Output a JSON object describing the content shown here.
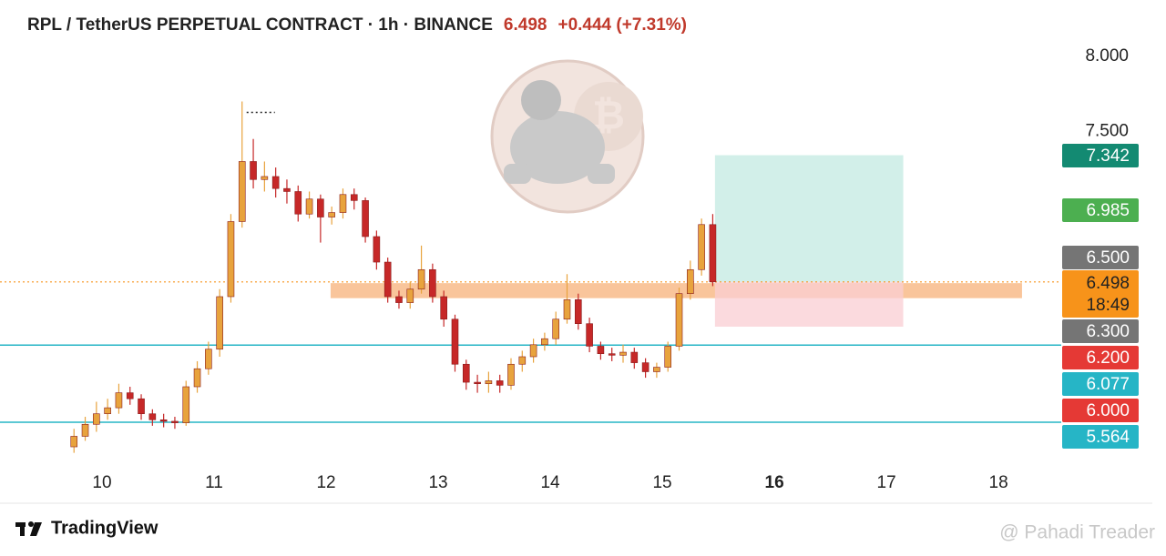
{
  "chart_data": {
    "type": "candlestick",
    "title": "RPL / TetherUS PERPETUAL CONTRACT · 1h · BINANCE",
    "price": "6.498",
    "change": "+0.444 (+7.31%)",
    "x": [
      9.75,
      9.85,
      9.95,
      10.05,
      10.15,
      10.25,
      10.35,
      10.45,
      10.55,
      10.65,
      10.75,
      10.85,
      10.95,
      11.05,
      11.15,
      11.25,
      11.35,
      11.45,
      11.55,
      11.65,
      11.75,
      11.85,
      11.95,
      12.05,
      12.15,
      12.25,
      12.35,
      12.45,
      12.55,
      12.65,
      12.75,
      12.85,
      12.95,
      13.05,
      13.15,
      13.25,
      13.35,
      13.45,
      13.55,
      13.65,
      13.75,
      13.85,
      13.95,
      14.05,
      14.15,
      14.25,
      14.35,
      14.45,
      14.55,
      14.65,
      14.75,
      14.85,
      14.95,
      15.05,
      15.15,
      15.25,
      15.35,
      15.45
    ],
    "open": [
      5.4,
      5.47,
      5.55,
      5.62,
      5.66,
      5.76,
      5.72,
      5.62,
      5.58,
      5.57,
      5.56,
      5.8,
      5.92,
      6.05,
      6.4,
      6.9,
      7.3,
      7.18,
      7.2,
      7.12,
      7.1,
      6.95,
      7.05,
      6.93,
      6.96,
      7.08,
      7.04,
      6.8,
      6.63,
      6.4,
      6.36,
      6.45,
      6.58,
      6.4,
      6.25,
      5.95,
      5.83,
      5.82,
      5.84,
      5.81,
      5.95,
      6.0,
      6.08,
      6.12,
      6.25,
      6.38,
      6.22,
      6.07,
      6.02,
      6.01,
      6.03,
      5.96,
      5.9,
      5.93,
      6.07,
      6.42,
      6.58,
      6.88
    ],
    "high": [
      5.52,
      5.6,
      5.7,
      5.72,
      5.82,
      5.8,
      5.75,
      5.65,
      5.62,
      5.6,
      5.84,
      5.97,
      6.1,
      6.45,
      6.95,
      7.7,
      7.45,
      7.3,
      7.26,
      7.18,
      7.14,
      7.1,
      7.08,
      7.0,
      7.12,
      7.12,
      7.06,
      6.84,
      6.66,
      6.44,
      6.5,
      6.74,
      6.62,
      6.44,
      6.28,
      5.98,
      5.88,
      5.9,
      5.88,
      5.99,
      6.04,
      6.12,
      6.16,
      6.3,
      6.55,
      6.42,
      6.26,
      6.1,
      6.06,
      6.08,
      6.06,
      5.99,
      5.96,
      6.1,
      6.46,
      6.64,
      6.92,
      6.95
    ],
    "low": [
      5.36,
      5.44,
      5.5,
      5.58,
      5.62,
      5.68,
      5.58,
      5.54,
      5.53,
      5.52,
      5.54,
      5.76,
      5.88,
      6.0,
      6.36,
      6.86,
      7.12,
      7.1,
      7.06,
      7.02,
      6.9,
      6.92,
      6.76,
      6.88,
      6.92,
      6.98,
      6.76,
      6.58,
      6.36,
      6.32,
      6.32,
      6.42,
      6.36,
      6.2,
      5.9,
      5.78,
      5.76,
      5.76,
      5.76,
      5.78,
      5.9,
      5.96,
      6.04,
      6.08,
      6.22,
      6.18,
      6.03,
      5.98,
      5.97,
      5.96,
      5.92,
      5.86,
      5.86,
      5.9,
      6.04,
      6.38,
      6.54,
      6.47
    ],
    "close": [
      5.47,
      5.55,
      5.62,
      5.66,
      5.76,
      5.72,
      5.62,
      5.58,
      5.57,
      5.56,
      5.8,
      5.92,
      6.05,
      6.4,
      6.9,
      7.3,
      7.18,
      7.2,
      7.12,
      7.1,
      6.95,
      7.05,
      6.93,
      6.96,
      7.08,
      7.04,
      6.8,
      6.63,
      6.4,
      6.36,
      6.45,
      6.58,
      6.4,
      6.25,
      5.95,
      5.83,
      5.82,
      5.84,
      5.81,
      5.95,
      6.0,
      6.08,
      6.12,
      6.25,
      6.38,
      6.22,
      6.07,
      6.02,
      6.01,
      6.03,
      5.96,
      5.9,
      5.93,
      6.07,
      6.42,
      6.58,
      6.88,
      6.498
    ],
    "up_color": "#e8a33d",
    "down_color": "#c62828",
    "xlim": [
      9.236,
      18.56
    ],
    "xticks": [
      10,
      11,
      12,
      13,
      14,
      15,
      16,
      17,
      18
    ],
    "bold_xtick": 16,
    "ylim": [
      5.285,
      8.133
    ],
    "yticks": [
      {
        "value": 8,
        "label": "8.000"
      },
      {
        "value": 7.5,
        "label": "7.500"
      }
    ],
    "price_labels": [
      {
        "value": 7.342,
        "label": "7.342",
        "color": "#138a72"
      },
      {
        "value": 6.985,
        "label": "6.985",
        "color": "#4caf50"
      },
      {
        "value": 6.5,
        "label": "6.500",
        "color": "#757575"
      },
      {
        "value": 6.498,
        "label": "6.498",
        "color": "#f7931a"
      },
      {
        "value": 6.3,
        "label": "6.300",
        "color": "#757575"
      },
      {
        "value": 6.2,
        "label": "6.200",
        "color": "#e53935"
      },
      {
        "value": 6.077,
        "label": "6.077",
        "color": "#26b5c6"
      },
      {
        "value": 6,
        "label": "6.000",
        "color": "#e53935"
      },
      {
        "value": 5.564,
        "label": "5.564",
        "color": "#26b5c6"
      }
    ],
    "countdown": "18:49",
    "last_price": 6.498,
    "hlines": [
      {
        "value": 6.077,
        "color": "#26b5c6"
      },
      {
        "value": 5.564,
        "color": "#26b5c6"
      }
    ],
    "zone": {
      "range": [
        6.39,
        6.49
      ],
      "x": [
        12.04,
        18.21
      ],
      "color": "#f7b27a"
    },
    "position": {
      "entry": 6.498,
      "target": 7.342,
      "stop": 6.2,
      "x": [
        15.47,
        17.15
      ]
    },
    "brand": "TradingView",
    "watermark": "@ Pahadi Treader"
  }
}
